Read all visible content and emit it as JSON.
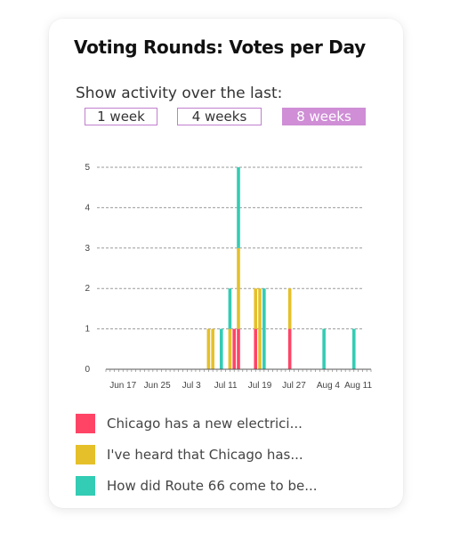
{
  "title": "Voting Rounds: Votes per Day",
  "range": {
    "prompt": "Show activity over the last:",
    "options": [
      "1 week",
      "4 weeks",
      "8 weeks"
    ],
    "selected": "8 weeks"
  },
  "colors": {
    "red": "#ff4466",
    "yellow": "#e5c02a",
    "teal": "#33ccb4",
    "accent": "#cf8ed6"
  },
  "chart_data": {
    "type": "bar",
    "stacked": true,
    "ylim": [
      0,
      5
    ],
    "yticks": [
      0,
      1,
      2,
      3,
      4,
      5
    ],
    "xlim": [
      "2024-06-13",
      "2024-08-14"
    ],
    "xticks": [
      {
        "date": "2024-06-17",
        "label": "Jun 17"
      },
      {
        "date": "2024-06-25",
        "label": "Jun 25"
      },
      {
        "date": "2024-07-03",
        "label": "Jul 3"
      },
      {
        "date": "2024-07-11",
        "label": "Jul 11"
      },
      {
        "date": "2024-07-19",
        "label": "Jul 19"
      },
      {
        "date": "2024-07-27",
        "label": "Jul 27"
      },
      {
        "date": "2024-08-04",
        "label": "Aug 4"
      },
      {
        "date": "2024-08-11",
        "label": "Aug 11"
      }
    ],
    "grid": true,
    "legend": "bottom",
    "series": [
      {
        "name": "Chicago has a new electrici...",
        "color": "#ff4466",
        "points": [
          {
            "date": "2024-07-13",
            "value": 1
          },
          {
            "date": "2024-07-14",
            "value": 1
          },
          {
            "date": "2024-07-18",
            "value": 1
          },
          {
            "date": "2024-07-26",
            "value": 1
          }
        ]
      },
      {
        "name": "I've heard that Chicago has...",
        "color": "#e5c02a",
        "points": [
          {
            "date": "2024-07-07",
            "value": 1
          },
          {
            "date": "2024-07-08",
            "value": 1
          },
          {
            "date": "2024-07-12",
            "value": 1
          },
          {
            "date": "2024-07-14",
            "value": 2
          },
          {
            "date": "2024-07-18",
            "value": 1
          },
          {
            "date": "2024-07-19",
            "value": 2
          },
          {
            "date": "2024-07-26",
            "value": 1
          }
        ]
      },
      {
        "name": "How did Route 66 come to be...",
        "color": "#33ccb4",
        "points": [
          {
            "date": "2024-07-10",
            "value": 1
          },
          {
            "date": "2024-07-12",
            "value": 1
          },
          {
            "date": "2024-07-14",
            "value": 2
          },
          {
            "date": "2024-07-20",
            "value": 2
          },
          {
            "date": "2024-08-03",
            "value": 1
          },
          {
            "date": "2024-08-10",
            "value": 1
          }
        ]
      }
    ]
  }
}
